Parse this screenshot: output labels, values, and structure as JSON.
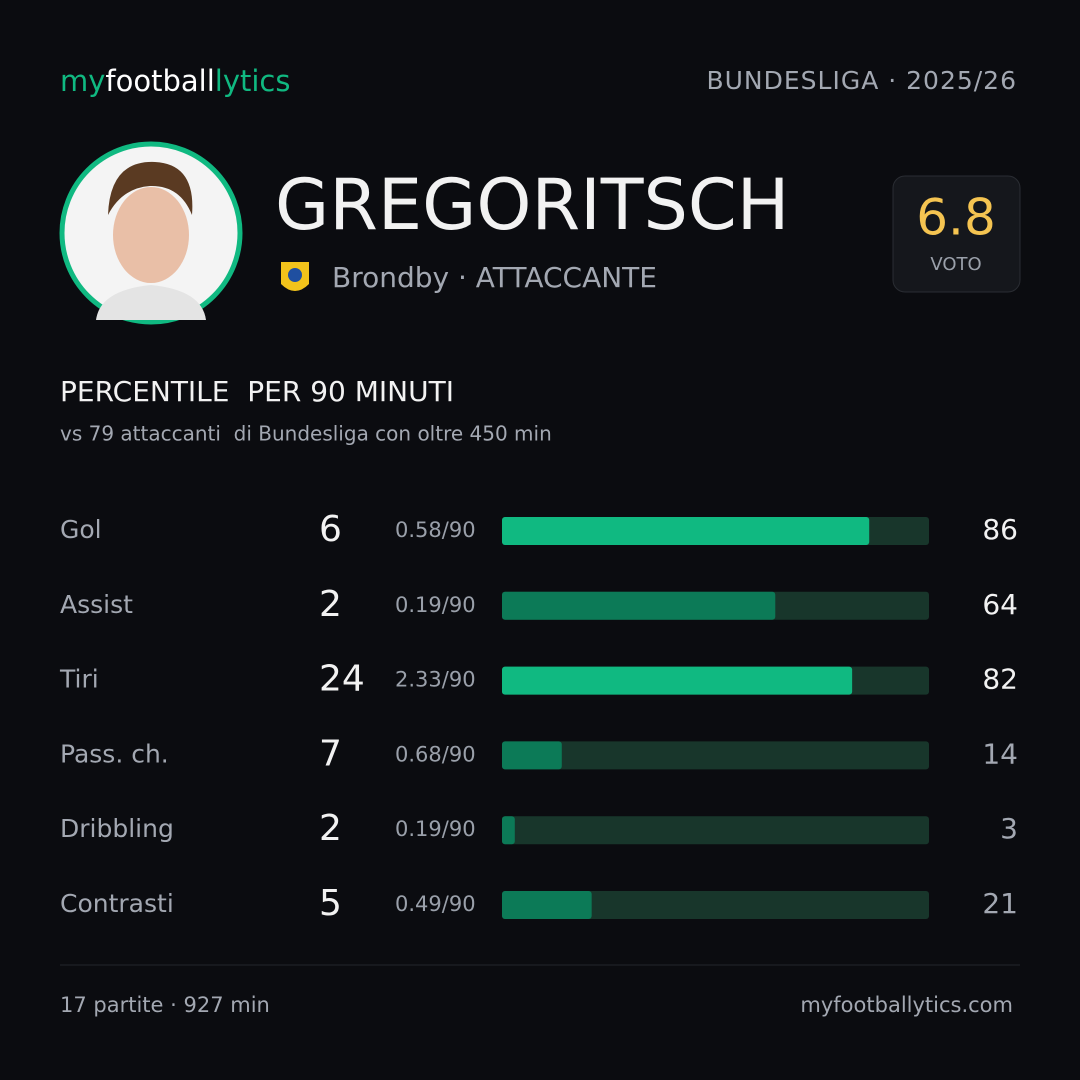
{
  "header": {
    "logo": [
      "my",
      "football",
      "lytics"
    ],
    "league": "BUNDESLIGA · 2025/26"
  },
  "player": {
    "name": "GREGORITSCH",
    "team_role": "Brondby · ATTACCANTE",
    "rating": 6.8,
    "rating_label": "VOTO"
  },
  "section": {
    "title": "PERCENTILE  PER 90 MINUTI",
    "subtitle": "vs 79 attaccanti  di Bundesliga con oltre 450 min"
  },
  "stats": {
    "xlim": [
      0,
      100
    ],
    "track_color": "#18362b",
    "rows": [
      {
        "label": "Gol",
        "count": 6,
        "per90": "0.58/90",
        "percentile": 86,
        "color": "#10b981"
      },
      {
        "label": "Assist",
        "count": 2,
        "per90": "0.19/90",
        "percentile": 64,
        "color": "#0c7a57"
      },
      {
        "label": "Tiri",
        "count": 24,
        "per90": "2.33/90",
        "percentile": 82,
        "color": "#10b981"
      },
      {
        "label": "Pass. ch.",
        "count": 7,
        "per90": "0.68/90",
        "percentile": 14,
        "color": "#0c7a57"
      },
      {
        "label": "Dribbling",
        "count": 2,
        "per90": "0.19/90",
        "percentile": 3,
        "color": "#0c7a57"
      },
      {
        "label": "Contrasti",
        "count": 5,
        "per90": "0.49/90",
        "percentile": 21,
        "color": "#0c7a57"
      }
    ]
  },
  "footer": {
    "left": "17 partite · 927 min",
    "right": "myfootballytics.com"
  }
}
